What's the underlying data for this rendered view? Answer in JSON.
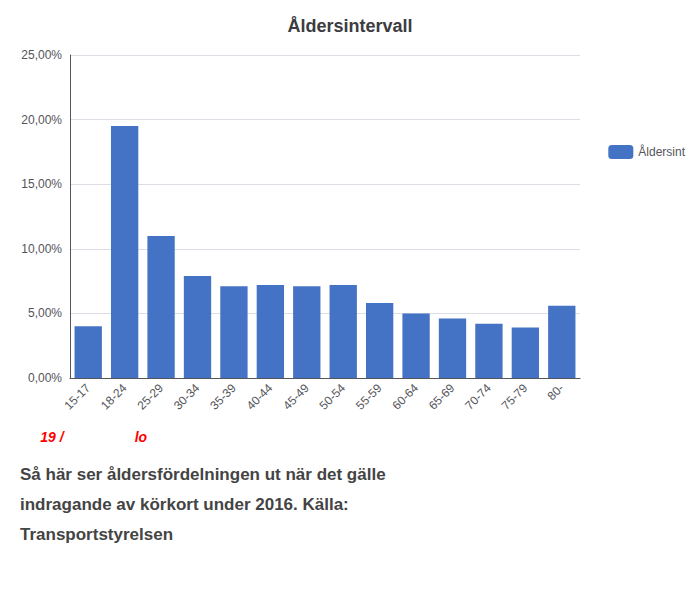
{
  "chart_data": {
    "type": "bar",
    "title": "Åldersintervall",
    "categories": [
      "15-17",
      "18-24",
      "25-29",
      "30-34",
      "35-39",
      "40-44",
      "45-49",
      "50-54",
      "55-59",
      "60-64",
      "65-69",
      "70-74",
      "75-79",
      "80-"
    ],
    "series": [
      {
        "name": "Åldersint",
        "color": "#4472C4",
        "values": [
          0.04,
          0.195,
          0.11,
          0.079,
          0.071,
          0.072,
          0.071,
          0.072,
          0.058,
          0.05,
          0.046,
          0.042,
          0.039,
          0.056
        ]
      }
    ],
    "ylim": [
      0,
      0.25
    ],
    "yticks": [
      {
        "value": 0.0,
        "label": "0,00%"
      },
      {
        "value": 0.05,
        "label": "5,00%"
      },
      {
        "value": 0.1,
        "label": "10,00%"
      },
      {
        "value": 0.15,
        "label": "15,00%"
      },
      {
        "value": 0.2,
        "label": "20,00%"
      },
      {
        "value": 0.25,
        "label": "25,00%"
      }
    ],
    "grid": true,
    "legend": "right",
    "annotations": [
      "19 /",
      "lo"
    ],
    "subtitle": [
      "Så här ser åldersfördelningen ut när det gälle",
      "indragande av körkort under 2016. Källa:",
      "Transportstyrelsen"
    ]
  }
}
